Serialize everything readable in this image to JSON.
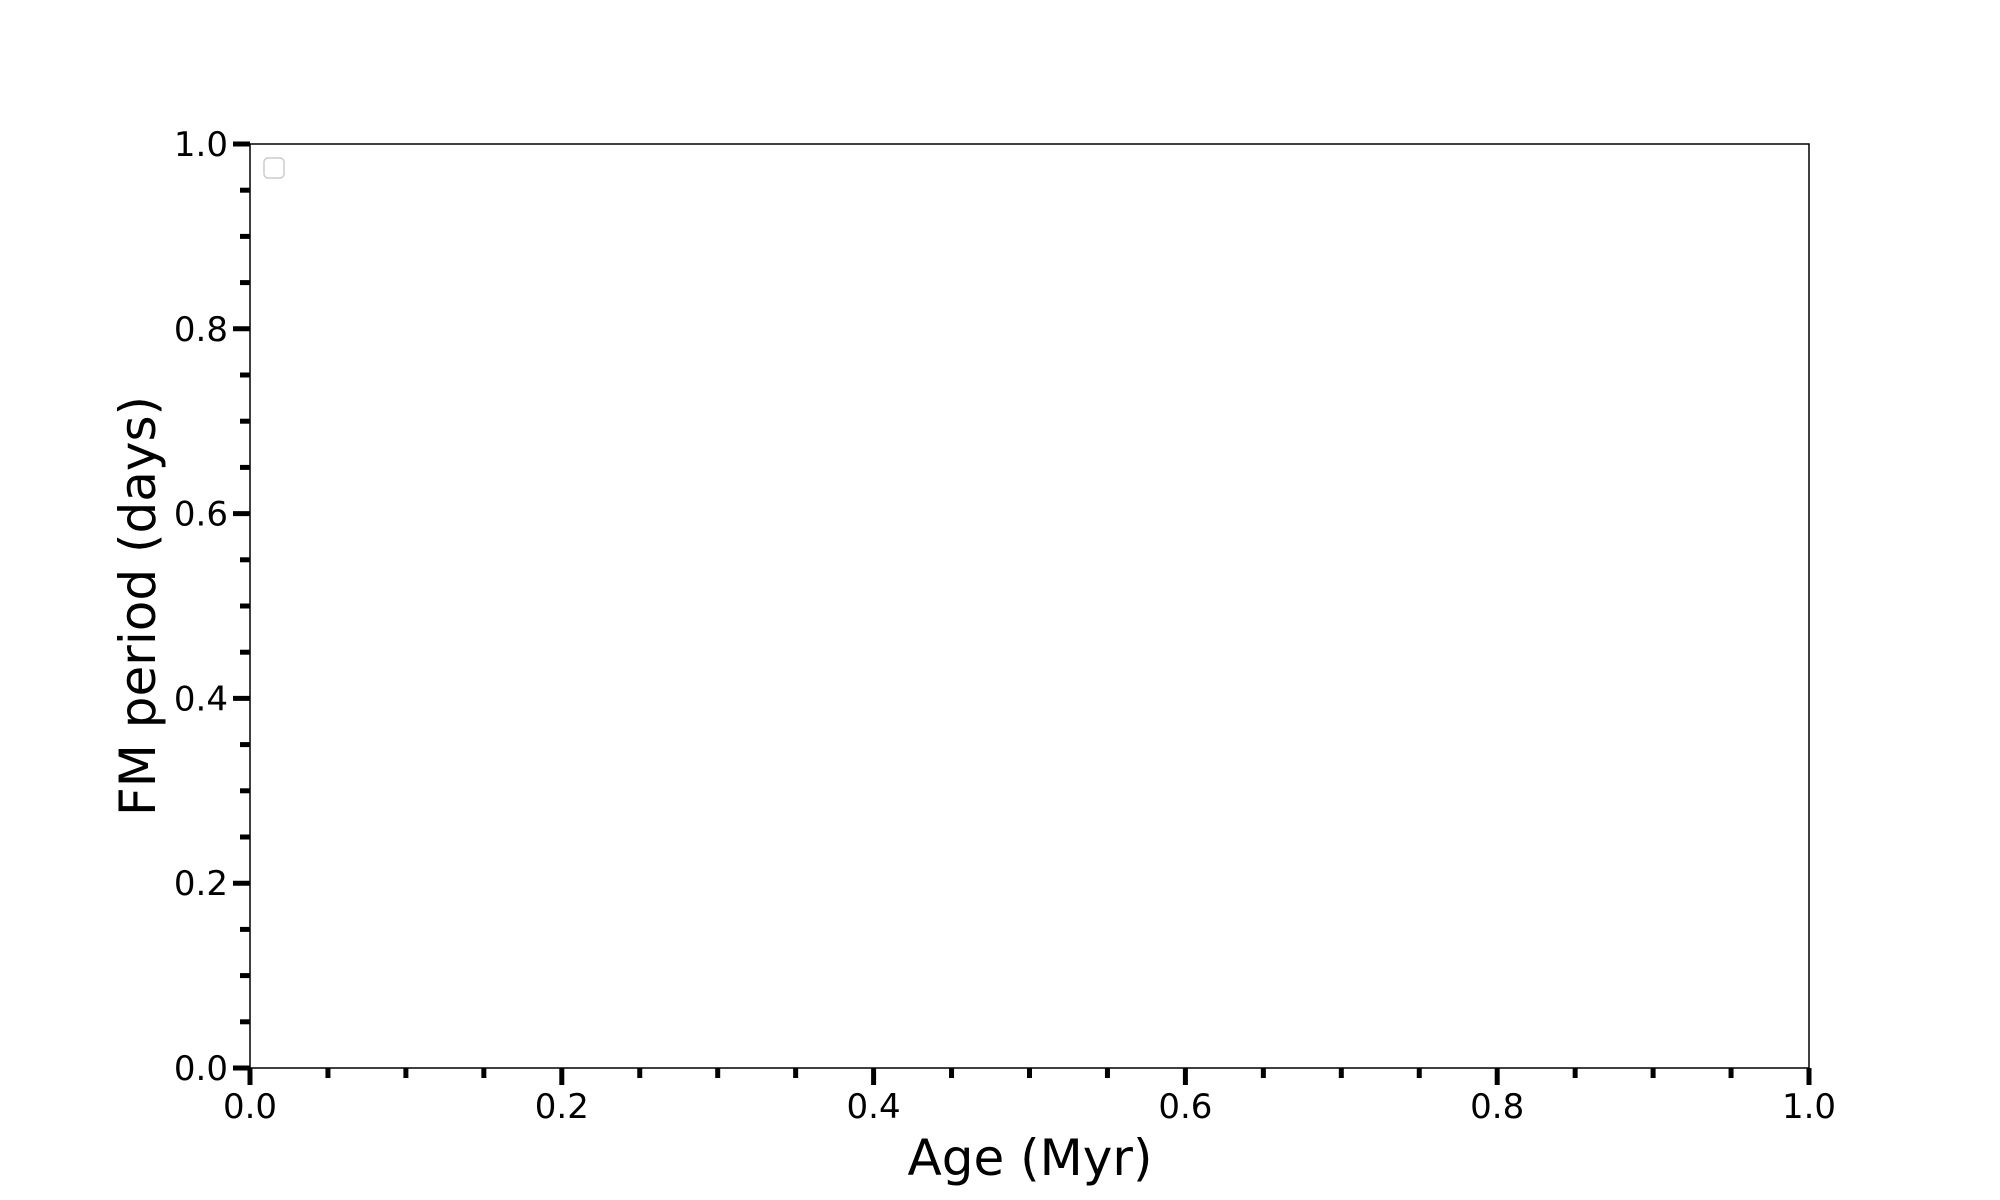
{
  "chart_data": {
    "type": "scatter",
    "title": "",
    "xlabel": "Age (Myr)",
    "ylabel": "FM period (days)",
    "xlim": [
      0.0,
      1.0
    ],
    "ylim": [
      0.0,
      1.0
    ],
    "x_ticks": [
      "0.0",
      "0.2",
      "0.4",
      "0.6",
      "0.8",
      "1.0"
    ],
    "y_ticks": [
      "0.0",
      "0.2",
      "0.4",
      "0.6",
      "0.8",
      "1.0"
    ],
    "minor_tick_step": 0.05,
    "grid": false,
    "legend": {
      "placement": "top-left",
      "entries": []
    },
    "series": [],
    "colors": {
      "axes": "#000000",
      "legend_border": "#cccccc",
      "background": "#ffffff"
    }
  }
}
